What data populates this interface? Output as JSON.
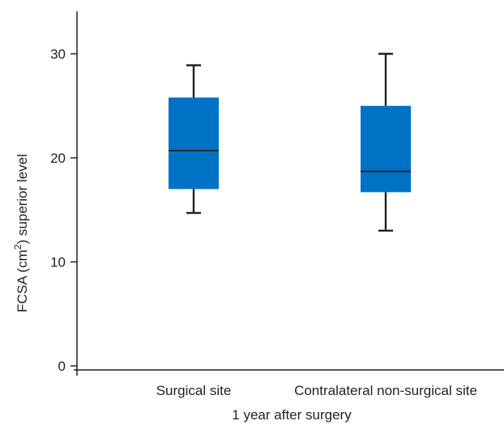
{
  "chart_data": {
    "type": "box",
    "xlabel": "1 year after surgery",
    "ylabel_main": "FCSA (cm",
    "ylabel_sup": "2",
    "ylabel_tail": ") superior level",
    "ylim": [
      0,
      34
    ],
    "yticks": [
      0,
      10,
      20,
      30
    ],
    "grid": false,
    "box_color": "#0072c6",
    "categories": [
      "Surgical site",
      "Contralateral non-surgical site"
    ],
    "boxes": [
      {
        "category": "Surgical site",
        "min": 14.7,
        "q1": 17.0,
        "median": 20.7,
        "q3": 25.8,
        "max": 28.9
      },
      {
        "category": "Contralateral non-surgical site",
        "min": 13.0,
        "q1": 16.7,
        "median": 18.7,
        "q3": 25.0,
        "max": 30.0
      }
    ]
  }
}
